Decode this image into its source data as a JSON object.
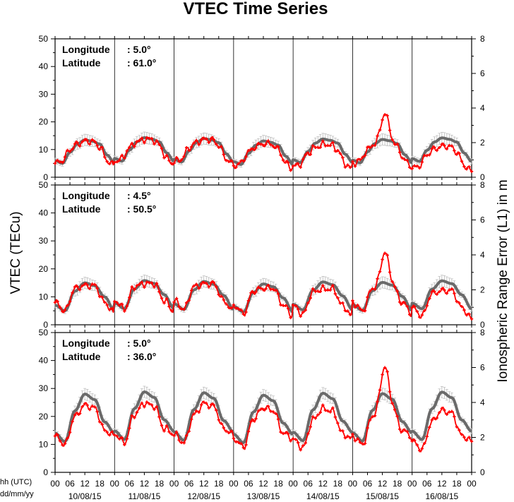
{
  "chart_data": {
    "type": "line",
    "title": "VTEC Time Series",
    "ylabel_left": "VTEC (TECu)",
    "ylabel_right": "Ionospheric Range Error (L1) in m",
    "ylim_left": [
      0,
      50
    ],
    "ylim_right": [
      0,
      8
    ],
    "y_ticks_left": [
      "0",
      "10",
      "20",
      "30",
      "40",
      "50"
    ],
    "y_ticks_right": [
      "0",
      "2",
      "4",
      "6",
      "8"
    ],
    "x_hour_ticks": [
      "00",
      "06",
      "12",
      "18",
      "00",
      "06",
      "12",
      "18",
      "00",
      "06",
      "12",
      "18",
      "00",
      "06",
      "12",
      "18",
      "00",
      "06",
      "12",
      "18",
      "00",
      "06",
      "12",
      "18",
      "00",
      "06",
      "12",
      "18",
      "00"
    ],
    "x_day_labels": [
      "10/08/15",
      "11/08/15",
      "12/08/15",
      "13/08/15",
      "14/08/15",
      "15/08/15",
      "16/08/15"
    ],
    "corner_label_line1": "hh (UTC)",
    "corner_label_line2": "dd/mm/yy",
    "x_unit": "hours since 10/08/15 00 UTC",
    "grid": "vertical lines at day boundaries",
    "series_colors": {
      "reference": "#6a6a6a",
      "observed": "#ff0000",
      "errorbar": "#b0b0b0"
    },
    "panels": [
      {
        "longitude_label": "Longitude",
        "longitude_value": ":   5.0°",
        "latitude_label": "Latitude",
        "latitude_value": ": 61.0°",
        "series": [
          {
            "values": [
              [
                0,
                6
              ],
              [
                3,
                5
              ],
              [
                6,
                9
              ],
              [
                9,
                12
              ],
              [
                12,
                13.5
              ],
              [
                15,
                13
              ],
              [
                18,
                12
              ],
              [
                21,
                8
              ],
              [
                24,
                5
              ]
            ]
          },
          {
            "values": [
              [
                0,
                5
              ],
              [
                3,
                6
              ],
              [
                6,
                10
              ],
              [
                9,
                12
              ],
              [
                12,
                13
              ],
              [
                15,
                13
              ],
              [
                18,
                11
              ],
              [
                21,
                6
              ],
              [
                24,
                4
              ]
            ]
          }
        ]
      },
      {
        "longitude_label": "Longitude",
        "longitude_value": ":   4.5°",
        "latitude_label": "Latitude",
        "latitude_value": ": 50.5°",
        "series": [
          {
            "values": [
              [
                0,
                7
              ],
              [
                4,
                5
              ],
              [
                8,
                12
              ],
              [
                12,
                15
              ],
              [
                16,
                14
              ],
              [
                20,
                10
              ],
              [
                24,
                5
              ]
            ]
          },
          {
            "values": [
              [
                0,
                8
              ],
              [
                4,
                5
              ],
              [
                8,
                13
              ],
              [
                12,
                14
              ],
              [
                16,
                14
              ],
              [
                20,
                8
              ],
              [
                24,
                4
              ]
            ]
          }
        ]
      },
      {
        "longitude_label": "Longitude",
        "longitude_value": ":   5.0°",
        "latitude_label": "Latitude",
        "latitude_value": ": 36.0°",
        "series": [
          {
            "values": [
              [
                0,
                14
              ],
              [
                4,
                11
              ],
              [
                8,
                22
              ],
              [
                12,
                28
              ],
              [
                16,
                26
              ],
              [
                20,
                18
              ],
              [
                24,
                14
              ]
            ]
          },
          {
            "values": [
              [
                0,
                13
              ],
              [
                4,
                10
              ],
              [
                8,
                20
              ],
              [
                12,
                24
              ],
              [
                16,
                23
              ],
              [
                20,
                15
              ],
              [
                24,
                13
              ]
            ]
          }
        ]
      }
    ]
  }
}
